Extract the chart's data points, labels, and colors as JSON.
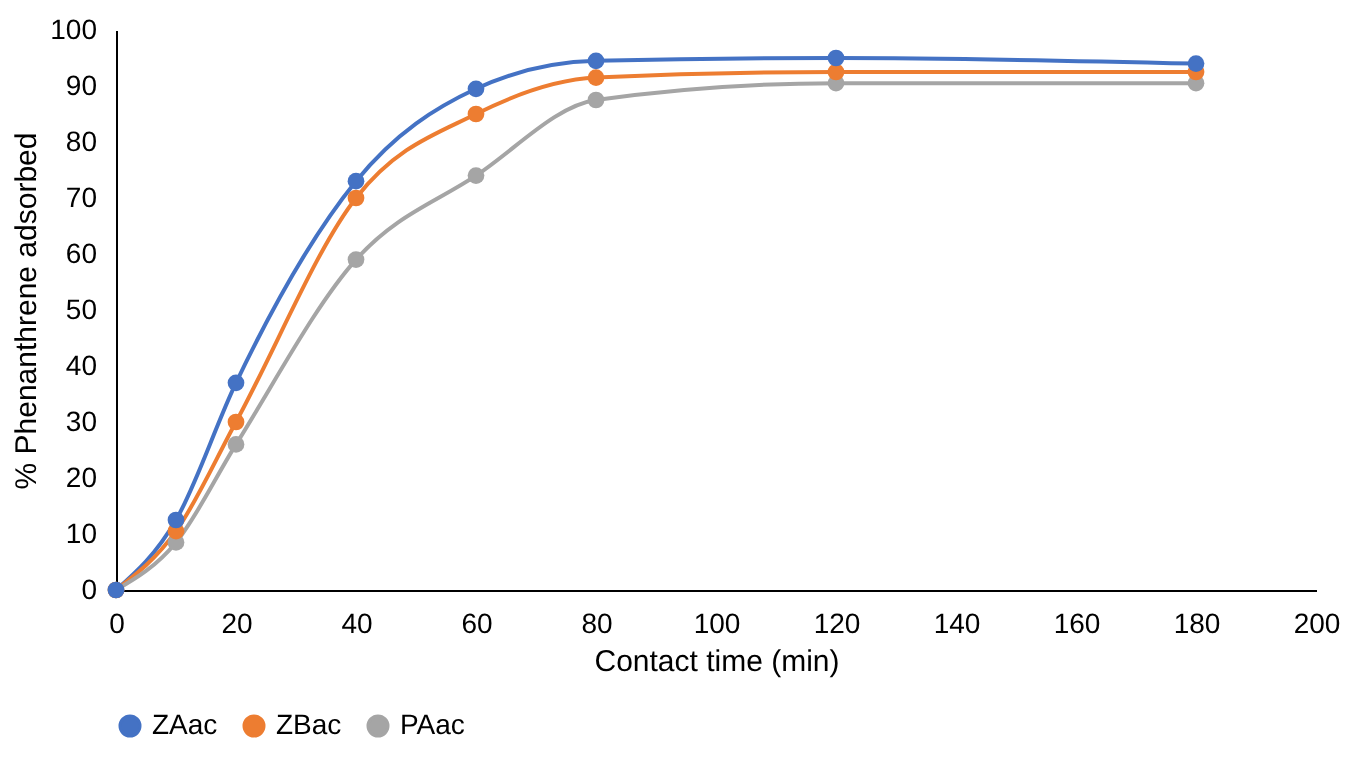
{
  "chart_data": {
    "type": "line",
    "xlabel": "Contact time (min)",
    "ylabel": "% Phenanthrene adsorbed",
    "x": [
      0,
      10,
      20,
      40,
      60,
      80,
      120,
      180
    ],
    "series": [
      {
        "name": "ZAac",
        "color": "#4472c4",
        "values": [
          0,
          12.5,
          37,
          73,
          89.5,
          94.5,
          95,
          94
        ]
      },
      {
        "name": "ZBac",
        "color": "#ed7d31",
        "values": [
          0,
          10.5,
          30,
          70,
          85,
          91.5,
          92.5,
          92.5
        ]
      },
      {
        "name": "PAac",
        "color": "#a5a5a5",
        "values": [
          0,
          8.5,
          26,
          59,
          74,
          87.5,
          90.5,
          90.5
        ]
      }
    ],
    "xlim": [
      0,
      200
    ],
    "xticks": [
      0,
      20,
      40,
      60,
      80,
      100,
      120,
      140,
      160,
      180,
      200
    ],
    "ylim": [
      0,
      100
    ],
    "yticks": [
      0,
      10,
      20,
      30,
      40,
      50,
      60,
      70,
      80,
      90,
      100
    ],
    "grid": false,
    "legend": "bottom",
    "marker": "circle",
    "line_style": "solid"
  }
}
